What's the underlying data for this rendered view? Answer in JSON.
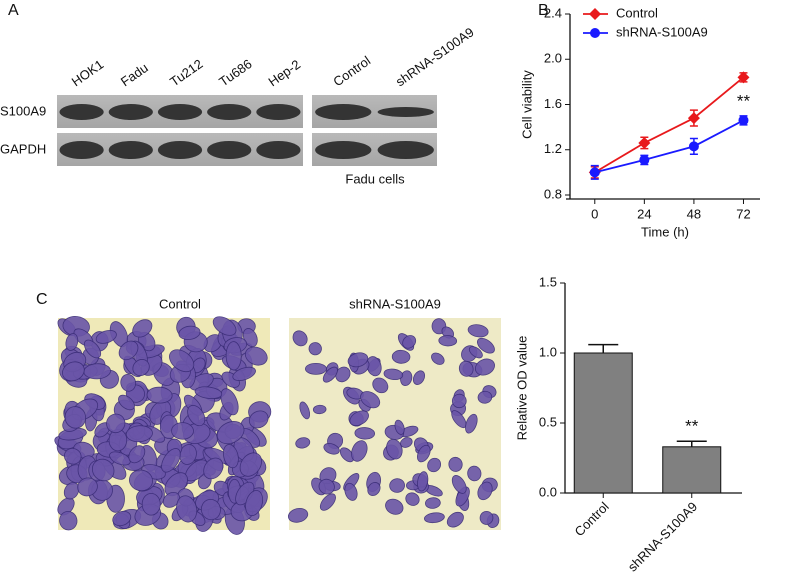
{
  "panel_labels": [
    "A",
    "B",
    "C"
  ],
  "blot": {
    "lanes_left": [
      "HOK1",
      "Fadu",
      "Tu212",
      "Tu686",
      "Hep-2"
    ],
    "lanes_right": [
      "Control",
      "shRNA-S100A9"
    ],
    "rows": [
      "S100A9",
      "GAPDH"
    ],
    "caption": "Fadu cells"
  },
  "images": [
    "Control",
    "shRNA-S100A9"
  ],
  "chart_data": [
    {
      "type": "line",
      "x": [
        0,
        24,
        48,
        72
      ],
      "xlim": [
        -12,
        80
      ],
      "xticks": [
        0,
        24,
        48,
        72
      ],
      "ylim": [
        0.8,
        2.4
      ],
      "yticks": [
        0.8,
        1.2,
        1.6,
        {
          "value": 2.0,
          "label": "2.0"
        },
        2.4
      ],
      "xlabel": "Time (h)",
      "ylabel": "Cell viability",
      "annotation": "**",
      "legend": "top-left",
      "series": [
        {
          "name": "Control",
          "color": "#e8191c",
          "marker": "diamond",
          "values": [
            1.0,
            1.26,
            1.48,
            1.84
          ],
          "errors": [
            0.05,
            0.05,
            0.07,
            0.04
          ]
        },
        {
          "name": "shRNA-S100A9",
          "color": "#1a1aff",
          "marker": "circle",
          "values": [
            1.0,
            1.11,
            1.23,
            1.46
          ],
          "errors": [
            0.06,
            0.04,
            0.07,
            0.04
          ]
        }
      ]
    },
    {
      "type": "bar",
      "categories": [
        "Control",
        "shRNA-S100A9"
      ],
      "values": [
        1.0,
        0.33
      ],
      "errors": [
        0.06,
        0.04
      ],
      "color": "#808080",
      "ylim": [
        0,
        1.5
      ],
      "yticks": [
        {
          "value": 0,
          "label": "0.0"
        },
        0.5,
        {
          "value": 1.0,
          "label": "1.0"
        },
        1.5
      ],
      "ylabel": "Relative OD value",
      "annotation": "**"
    }
  ]
}
